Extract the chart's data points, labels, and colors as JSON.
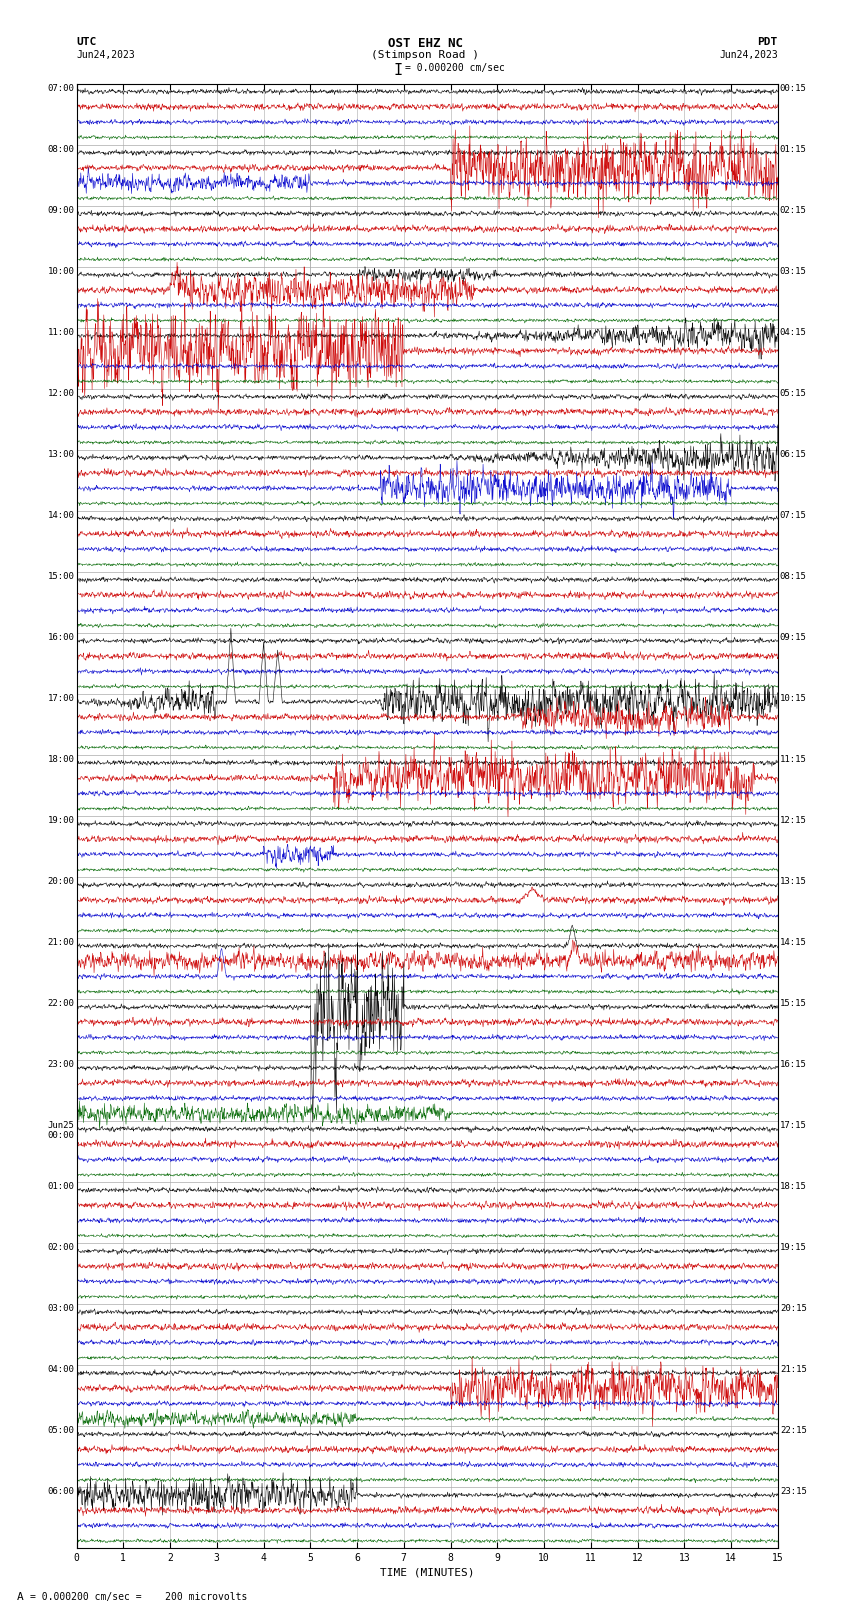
{
  "title_line1": "OST EHZ NC",
  "title_line2": "(Stimpson Road )",
  "scale_text": "I = 0.000200 cm/sec",
  "utc_label": "UTC",
  "utc_date": "Jun24,2023",
  "pdt_label": "PDT",
  "pdt_date": "Jun24,2023",
  "xlabel": "TIME (MINUTES)",
  "bottom_note": "= 0.000200 cm/sec =    200 microvolts",
  "xlim": [
    0,
    15
  ],
  "xticks": [
    0,
    1,
    2,
    3,
    4,
    5,
    6,
    7,
    8,
    9,
    10,
    11,
    12,
    13,
    14,
    15
  ],
  "bg_color": "#ffffff",
  "grid_color": "#888888",
  "green_grid_color": "#009900",
  "trace_colors": [
    "#000000",
    "#cc0000",
    "#0000cc",
    "#006600"
  ],
  "left_times": [
    "07:00",
    "08:00",
    "09:00",
    "10:00",
    "11:00",
    "12:00",
    "13:00",
    "14:00",
    "15:00",
    "16:00",
    "17:00",
    "18:00",
    "19:00",
    "20:00",
    "21:00",
    "22:00",
    "23:00",
    "Jun25\n00:00",
    "01:00",
    "02:00",
    "03:00",
    "04:00",
    "05:00",
    "06:00"
  ],
  "right_times": [
    "00:15",
    "01:15",
    "02:15",
    "03:15",
    "04:15",
    "05:15",
    "06:15",
    "07:15",
    "08:15",
    "09:15",
    "10:15",
    "11:15",
    "12:15",
    "13:15",
    "14:15",
    "15:15",
    "16:15",
    "17:15",
    "18:15",
    "19:15",
    "20:15",
    "21:15",
    "22:15",
    "23:15"
  ],
  "num_rows": 24,
  "traces_per_row": 4,
  "noise_scales": [
    0.25,
    0.35,
    0.25,
    0.18
  ],
  "fig_width": 8.5,
  "fig_height": 16.13,
  "dpi": 100
}
